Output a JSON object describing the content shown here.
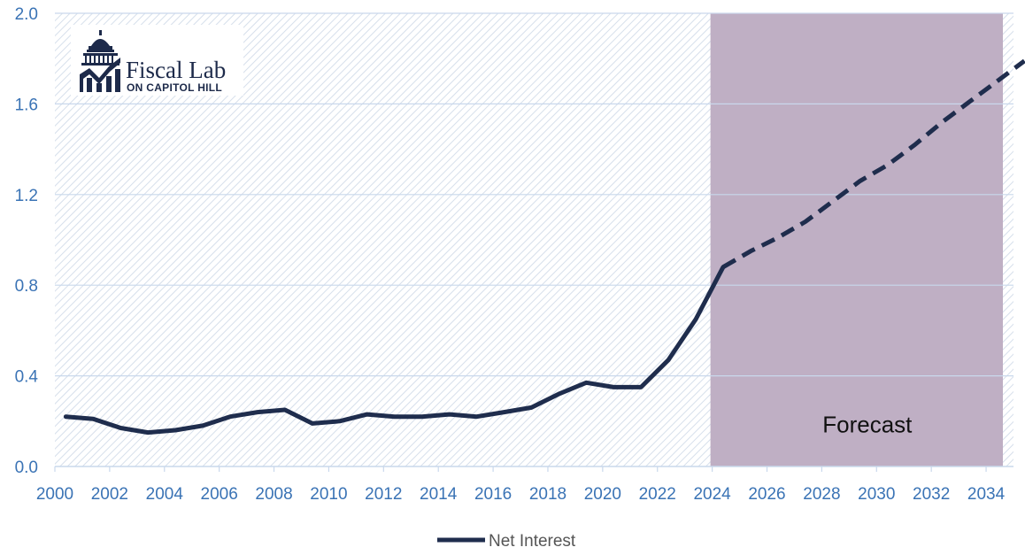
{
  "logo": {
    "name": "Fiscal Lab",
    "subtitle": "ON CAPITOL HILL"
  },
  "chart_data": {
    "type": "line",
    "title": "",
    "xlabel": "",
    "ylabel": "",
    "xlim": [
      2000,
      2035
    ],
    "ylim": [
      0.0,
      2.0
    ],
    "y_ticks": [
      "0.0",
      "0.4",
      "0.8",
      "1.2",
      "1.6",
      "2.0"
    ],
    "x_ticks": [
      "2000",
      "2002",
      "2004",
      "2006",
      "2008",
      "2010",
      "2012",
      "2014",
      "2016",
      "2018",
      "2020",
      "2022",
      "2024",
      "2026",
      "2028",
      "2030",
      "2032",
      "2034"
    ],
    "grid": true,
    "legend_position": "bottom-center",
    "series": [
      {
        "name": "Net Interest",
        "color": "#1f2d4d",
        "x": [
          2000,
          2001,
          2002,
          2003,
          2004,
          2005,
          2006,
          2007,
          2008,
          2009,
          2010,
          2011,
          2012,
          2013,
          2014,
          2015,
          2016,
          2017,
          2018,
          2019,
          2020,
          2021,
          2022,
          2023,
          2024
        ],
        "values": [
          0.22,
          0.21,
          0.17,
          0.15,
          0.16,
          0.18,
          0.22,
          0.24,
          0.25,
          0.19,
          0.2,
          0.23,
          0.22,
          0.22,
          0.23,
          0.22,
          0.24,
          0.26,
          0.32,
          0.37,
          0.35,
          0.35,
          0.47,
          0.65,
          0.88
        ],
        "forecast_x": [
          2024,
          2025,
          2026,
          2027,
          2028,
          2029,
          2030,
          2031,
          2032,
          2033,
          2034,
          2035
        ],
        "forecast_values": [
          0.88,
          0.95,
          1.01,
          1.08,
          1.17,
          1.26,
          1.33,
          1.42,
          1.52,
          1.61,
          1.7,
          1.79
        ]
      }
    ],
    "forecast_region": {
      "label": "Forecast",
      "x_start": 2024,
      "x_end": 2035,
      "color": "#bfafc4"
    }
  }
}
